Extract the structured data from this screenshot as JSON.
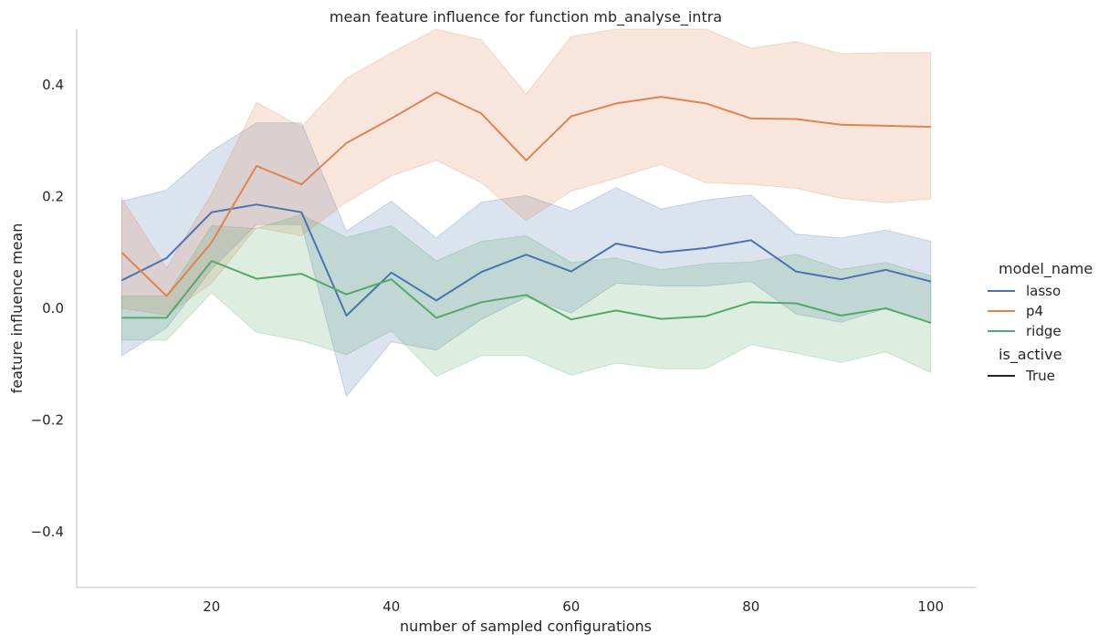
{
  "chart_data": {
    "type": "line",
    "title": "mean feature influence for function mb_analyse_intra",
    "xlabel": "number of sampled configurations",
    "ylabel": "feature influence mean",
    "xlim": [
      5,
      105
    ],
    "ylim": [
      -0.5,
      0.5
    ],
    "x_ticks": [
      20,
      40,
      60,
      80,
      100
    ],
    "y_ticks": [
      -0.4,
      -0.2,
      0.0,
      0.2,
      0.4
    ],
    "x_tick_labels": [
      "20",
      "40",
      "60",
      "80",
      "100"
    ],
    "y_tick_labels": [
      "−0.4",
      "−0.2",
      "0.0",
      "0.2",
      "0.4"
    ],
    "grid": false,
    "legend": {
      "placement": "right",
      "title": "model_name",
      "entries": [
        "lasso",
        "p4",
        "ridge"
      ],
      "style_title": "is_active",
      "style_entries": [
        "True"
      ]
    },
    "x": [
      10,
      15,
      20,
      25,
      30,
      35,
      40,
      45,
      50,
      55,
      60,
      65,
      70,
      75,
      80,
      85,
      90,
      95,
      100
    ],
    "series": [
      {
        "name": "lasso",
        "color": "#4c72b0",
        "values": [
          0.05,
          0.09,
          0.172,
          0.186,
          0.172,
          -0.013,
          0.064,
          0.014,
          0.065,
          0.096,
          0.066,
          0.116,
          0.1,
          0.108,
          0.122,
          0.066,
          0.052,
          0.069,
          0.048
        ],
        "lower": [
          -0.085,
          -0.035,
          0.07,
          0.15,
          0.15,
          -0.158,
          -0.06,
          -0.075,
          -0.02,
          0.02,
          -0.008,
          0.045,
          0.04,
          0.04,
          0.048,
          -0.01,
          -0.025,
          0.0,
          -0.025
        ],
        "upper": [
          0.192,
          0.212,
          0.282,
          0.332,
          0.332,
          0.138,
          0.192,
          0.126,
          0.19,
          0.202,
          0.174,
          0.216,
          0.178,
          0.194,
          0.203,
          0.133,
          0.126,
          0.14,
          0.12
        ]
      },
      {
        "name": "p4",
        "color": "#dd8452",
        "values": [
          0.1,
          0.022,
          0.118,
          0.255,
          0.222,
          0.296,
          0.34,
          0.387,
          0.349,
          0.265,
          0.344,
          0.367,
          0.379,
          0.367,
          0.34,
          0.339,
          0.329,
          0.327,
          0.325
        ],
        "lower": [
          0.0,
          -0.012,
          0.045,
          0.145,
          0.13,
          0.19,
          0.237,
          0.265,
          0.225,
          0.157,
          0.21,
          0.233,
          0.258,
          0.225,
          0.222,
          0.215,
          0.197,
          0.189,
          0.196
        ],
        "upper": [
          0.197,
          0.072,
          0.205,
          0.369,
          0.325,
          0.412,
          0.458,
          0.51,
          0.481,
          0.384,
          0.487,
          0.51,
          0.51,
          0.51,
          0.466,
          0.478,
          0.456,
          0.458,
          0.458
        ]
      },
      {
        "name": "ridge",
        "color": "#55a868",
        "values": [
          -0.017,
          -0.017,
          0.085,
          0.053,
          0.062,
          0.025,
          0.052,
          -0.017,
          0.011,
          0.024,
          -0.02,
          -0.004,
          -0.019,
          -0.014,
          0.011,
          0.009,
          -0.013,
          0.0,
          -0.026
        ],
        "lower": [
          -0.057,
          -0.057,
          0.028,
          -0.043,
          -0.058,
          -0.083,
          -0.04,
          -0.122,
          -0.085,
          -0.085,
          -0.12,
          -0.098,
          -0.108,
          -0.108,
          -0.065,
          -0.08,
          -0.097,
          -0.078,
          -0.115
        ],
        "upper": [
          0.022,
          0.022,
          0.148,
          0.143,
          0.168,
          0.127,
          0.148,
          0.085,
          0.12,
          0.13,
          0.082,
          0.09,
          0.069,
          0.08,
          0.083,
          0.097,
          0.07,
          0.082,
          0.058
        ]
      }
    ]
  }
}
